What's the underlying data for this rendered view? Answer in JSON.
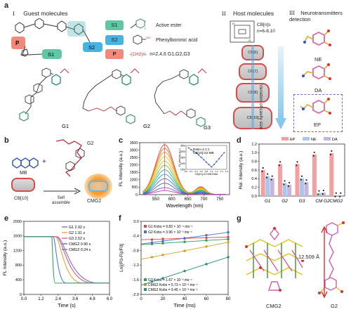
{
  "panel_a": {
    "letter": "a",
    "section_I": {
      "roman": "I",
      "title": "Guest molecules"
    },
    "section_II": {
      "roman": "II",
      "title": "Host molecules"
    },
    "section_III": {
      "roman": "III",
      "title": "Neurotransmitters detection"
    },
    "legend": [
      {
        "tag": "S1",
        "desc": "Active ester",
        "color": "#5fc7a5"
      },
      {
        "tag": "S2",
        "desc": "Phenylboronic acid",
        "color": "#47b3e0"
      },
      {
        "tag": "P",
        "desc": "n=2,4,6   G1,G2,G3",
        "color": "#f08a7a"
      }
    ],
    "linker_formula": "-(CH2)n-",
    "schematic_tags": {
      "P": "P",
      "S1": "S1",
      "S2": "S2"
    },
    "guests": [
      "G1",
      "G2",
      "G3"
    ],
    "host_formula": "CB[n]s",
    "host_n": "n=6-8,10",
    "rings": [
      "CB[6]",
      "CB[7]",
      "CB[8]",
      "CB[10]"
    ],
    "cavity_label": "Variation of cavity size",
    "neurotransmitters": [
      "NE",
      "DA",
      "EP"
    ]
  },
  "panel_b": {
    "letter": "b",
    "mb_label": "MB",
    "g2_label": "G2",
    "cb_label": "CB[10]",
    "arrow_label": "Self\nassemble",
    "product_label": "CMG2"
  },
  "panel_c": {
    "letter": "c",
    "chart_data": {
      "type": "line",
      "xlabel": "Wavelength (nm)",
      "ylabel": "FL Intensity (a.u.)",
      "xlim": [
        500,
        780
      ],
      "ylim": [
        0,
        3500
      ],
      "xticks": [
        550,
        600,
        650,
        700,
        750
      ],
      "yticks": [
        0,
        500,
        1000,
        1500,
        2000,
        2500,
        3000,
        3500
      ],
      "peak_wavelength": 578,
      "peak_heights": [
        3350,
        3100,
        2850,
        2550,
        2250,
        1950,
        1650,
        1350,
        1050,
        750,
        450,
        250
      ],
      "series_colors": [
        "#e8413a",
        "#f0702d",
        "#f2a122",
        "#e6c81f",
        "#b6d12b",
        "#6cc24a",
        "#2fb493",
        "#2a9fc9",
        "#3a77cf",
        "#5a55c4",
        "#8d4bc1",
        "#c042b8"
      ],
      "inset": {
        "annotation_1": "Ratio=1:1:1",
        "annotation_2": "CB[10]:G2:MB",
        "xlabel": "CB[10]-G2:MB Ratio",
        "ylabel": "FL Intensity (a.u.)",
        "x": [
          0.1,
          0.2,
          0.3,
          0.4,
          0.5,
          0.6,
          0.7,
          0.8,
          0.9,
          1.0,
          1.1,
          1.2,
          1.3,
          1.4,
          1.5
        ],
        "y": [
          3300,
          3150,
          3000,
          2850,
          2700,
          2500,
          2300,
          2100,
          1900,
          1700,
          1900,
          2150,
          2400,
          2650,
          2900
        ],
        "yticks": [
          1500,
          2000,
          2500,
          3000,
          3500
        ],
        "xticks": [
          "0.0",
          "0.2",
          "0.4",
          "0.6",
          "0.8",
          "1.0",
          "1.2",
          "1.4",
          "1.6"
        ]
      }
    }
  },
  "panel_d": {
    "letter": "d",
    "chart_data": {
      "type": "bar",
      "categories": [
        "G1",
        "G2",
        "G3",
        "CMG2",
        "CMG2"
      ],
      "category_display": [
        "G1",
        "G2",
        "G3",
        "CM",
        "G2",
        "CMG2"
      ],
      "series": [
        {
          "name": "EP",
          "values": [
            0.6,
            0.74,
            0.74,
            0.96,
            0.99
          ],
          "color": "#f4a0a0"
        },
        {
          "name": "NE",
          "values": [
            0.46,
            0.3,
            0.41,
            0.07,
            0.02
          ],
          "color": "#a8c7ea"
        },
        {
          "name": "DA",
          "values": [
            0.41,
            0.26,
            0.32,
            0.08,
            0.02
          ],
          "color": "#c8b4e0"
        }
      ],
      "ylabel": "Rel. Intensity (a.u.)",
      "ylim": [
        0,
        1.2
      ],
      "yticks": [
        "0.0",
        "0.2",
        "0.4",
        "0.6",
        "0.8",
        "1.0",
        "1.2"
      ]
    }
  },
  "panel_e": {
    "letter": "e",
    "chart_data": {
      "type": "line",
      "xlabel": "Time (s)",
      "ylabel": "FL Intensity (a.u.)",
      "xlim": [
        0,
        6
      ],
      "ylim": [
        0,
        2000
      ],
      "xticks": [
        "0.0",
        "1.2",
        "2.4",
        "3.6",
        "4.8",
        "6.0"
      ],
      "yticks": [
        0,
        400,
        800,
        1200,
        1600,
        2000
      ],
      "series": [
        {
          "name": "G1 2.92 s",
          "drop_start": 2.3,
          "drop_end": 5.2,
          "color": "#8c6ac8"
        },
        {
          "name": "G2 1.91 s",
          "drop_start": 2.2,
          "drop_end": 4.1,
          "color": "#e8a43a"
        },
        {
          "name": "G3 2.52 s",
          "drop_start": 2.25,
          "drop_end": 4.8,
          "color": "#e05a8a"
        },
        {
          "name": "CMG2 0.90 s",
          "drop_start": 2.05,
          "drop_end": 2.95,
          "color": "#4a7fd0"
        },
        {
          "name": "CMG2 0.24 s",
          "drop_start": 1.95,
          "drop_end": 2.2,
          "color": "#3aa070"
        }
      ],
      "start_level": 1580,
      "end_level": 310
    }
  },
  "panel_f": {
    "letter": "f",
    "chart_data": {
      "type": "scatter",
      "xlabel": "Time (ms)",
      "ylabel": "Ln[(F0-Fi)/F0]",
      "xlim": [
        0,
        80
      ],
      "ylim": [
        -2.0,
        0.0
      ],
      "xticks": [
        0,
        20,
        40,
        60,
        80
      ],
      "yticks": [
        "0.0",
        "-0.4",
        "-0.8",
        "-1.2",
        "-1.6",
        "-2.0"
      ],
      "series": [
        {
          "name": "G1 Kobs = 9.83 × 10⁻⁴ ms⁻¹",
          "x": [
            10,
            20,
            40,
            60,
            80
          ],
          "y": [
            -0.5,
            -0.48,
            -0.46,
            -0.45,
            -0.43
          ],
          "color": "#e04848"
        },
        {
          "name": "G2 Kobs = 3.96 × 10⁻³ ms⁻¹",
          "x": [
            10,
            20,
            40,
            60,
            80
          ],
          "y": [
            -0.58,
            -0.54,
            -0.47,
            -0.38,
            -0.3
          ],
          "color": "#4a6fd0"
        },
        {
          "name": "G3 Kobs = 1.67 × 10⁻³ ms⁻¹",
          "x": [
            10,
            20,
            40,
            60,
            80
          ],
          "y": [
            -0.62,
            -0.6,
            -0.56,
            -0.52,
            -0.49
          ],
          "color": "#2f9a5f"
        },
        {
          "name": "CMG2 Kobs = 5.73 × 10⁻³ ms⁻¹",
          "x": [
            10,
            20,
            40,
            60,
            80
          ],
          "y": [
            -0.98,
            -0.92,
            -0.81,
            -0.69,
            -0.57
          ],
          "color": "#d4a020"
        },
        {
          "name": "CMG2 Kobs = 9.45 × 10⁻³ ms⁻¹",
          "x": [
            10,
            20,
            40,
            60,
            80
          ],
          "y": [
            -1.65,
            -1.56,
            -1.36,
            -1.17,
            -0.98
          ],
          "color": "#2a8a80"
        }
      ]
    }
  },
  "panel_g": {
    "letter": "g",
    "distance": "12.509 Å",
    "left_label": "CMG2",
    "right_label": "G2"
  }
}
